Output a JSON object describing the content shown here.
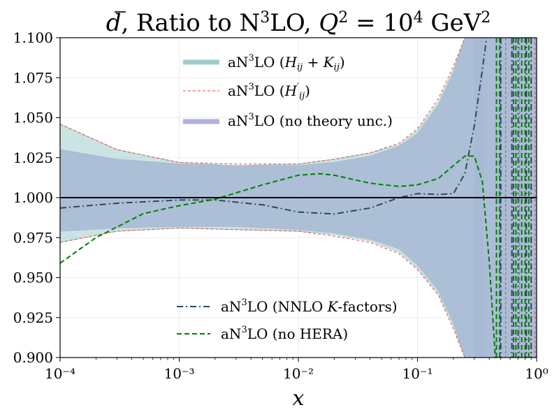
{
  "chart_data": {
    "type": "line",
    "title": "d̄, Ratio to N³LO, Q² = 10⁴ GeV²",
    "xlabel": "x",
    "ylabel": "",
    "xscale": "log",
    "xlim": [
      0.0001,
      1
    ],
    "ylim": [
      0.9,
      1.1
    ],
    "grid": true,
    "legend_placement": "top-center and bottom-center",
    "x_tick_labels": [
      "10⁻⁴",
      "10⁻³",
      "10⁻²",
      "10⁻¹",
      "10⁰"
    ],
    "x_ticks": [
      0.0001,
      0.001,
      0.01,
      0.1,
      1
    ],
    "y_tick_labels": [
      "0.900",
      "0.925",
      "0.950",
      "0.975",
      "1.000",
      "1.025",
      "1.050",
      "1.075",
      "1.100"
    ],
    "y_ticks": [
      0.9,
      0.925,
      0.95,
      0.975,
      1.0,
      1.025,
      1.05,
      1.075,
      1.1
    ],
    "reference_line": 1.0,
    "bands": [
      {
        "name": "aN³LO (Hᵢⱼ + Kᵢⱼ)",
        "color": "#9fcdcc",
        "x": [
          0.0001,
          0.0003,
          0.001,
          0.003,
          0.01,
          0.02,
          0.04,
          0.07,
          0.1,
          0.15,
          0.2,
          0.25,
          0.28,
          0.35
        ],
        "upper": [
          1.046,
          1.03,
          1.022,
          1.02,
          1.021,
          1.024,
          1.028,
          1.033,
          1.042,
          1.06,
          1.08,
          1.1,
          1.115,
          1.15
        ],
        "lower": [
          0.972,
          0.979,
          0.981,
          0.98,
          0.979,
          0.977,
          0.973,
          0.966,
          0.956,
          0.94,
          0.92,
          0.9,
          0.885,
          0.85
        ]
      },
      {
        "name": "aN³LO (no theory unc.)",
        "color": "#a7b8d4",
        "x": [
          0.0001,
          0.0003,
          0.001,
          0.003,
          0.01,
          0.02,
          0.04,
          0.07,
          0.1,
          0.15,
          0.2,
          0.25,
          0.28,
          0.35
        ],
        "upper": [
          1.03,
          1.024,
          1.021,
          1.02,
          1.02,
          1.022,
          1.026,
          1.032,
          1.04,
          1.058,
          1.078,
          1.1,
          1.112,
          1.14
        ],
        "lower": [
          0.979,
          0.981,
          0.982,
          0.982,
          0.98,
          0.978,
          0.974,
          0.968,
          0.958,
          0.942,
          0.922,
          0.9,
          0.888,
          0.86
        ]
      }
    ],
    "series": [
      {
        "name": "aN³LO (H′ᵢⱼ)",
        "color": "#e8483b",
        "style": "dashed-thin",
        "x": [
          0.0001,
          0.0003,
          0.001,
          0.003,
          0.01,
          0.02,
          0.04,
          0.07,
          0.1,
          0.15,
          0.2,
          0.25,
          0.27
        ],
        "y_upper": [
          1.046,
          1.03,
          1.022,
          1.021,
          1.021,
          1.024,
          1.028,
          1.034,
          1.043,
          1.062,
          1.082,
          1.1,
          1.108
        ],
        "y_lower": [
          0.972,
          0.979,
          0.981,
          0.98,
          0.979,
          0.976,
          0.972,
          0.965,
          0.955,
          0.939,
          0.918,
          0.9,
          0.89
        ]
      },
      {
        "name": "aN³LO (NNLO K-factors)",
        "color": "#2f4858",
        "style": "dashdot",
        "x": [
          0.0001,
          0.0003,
          0.001,
          0.002,
          0.005,
          0.01,
          0.02,
          0.04,
          0.07,
          0.1,
          0.15,
          0.2,
          0.25,
          0.3,
          0.35,
          0.38
        ],
        "y": [
          0.9935,
          0.9965,
          0.9985,
          0.9985,
          0.9955,
          0.991,
          0.9898,
          0.9935,
          1.0,
          1.0025,
          1.002,
          1.0025,
          1.015,
          1.045,
          1.08,
          1.1
        ]
      },
      {
        "name": "aN³LO (no HERA)",
        "color": "#008000",
        "style": "dashed",
        "x": [
          0.0001,
          0.0002,
          0.0005,
          0.001,
          0.002,
          0.005,
          0.01,
          0.015,
          0.02,
          0.04,
          0.07,
          0.1,
          0.15,
          0.2,
          0.25,
          0.3,
          0.35,
          0.4,
          0.45
        ],
        "y": [
          0.959,
          0.975,
          0.99,
          0.995,
          0.999,
          1.008,
          1.014,
          1.015,
          1.014,
          1.009,
          1.007,
          1.008,
          1.012,
          1.02,
          1.026,
          1.026,
          1.01,
          0.96,
          0.9
        ]
      }
    ],
    "legend_entries": [
      "aN³LO (Hᵢⱼ + Kᵢⱼ)",
      "aN³LO (H′ᵢⱼ)",
      "aN³LO (no theory unc.)",
      "aN³LO (NNLO K-factors)",
      "aN³LO (no HERA)"
    ]
  }
}
